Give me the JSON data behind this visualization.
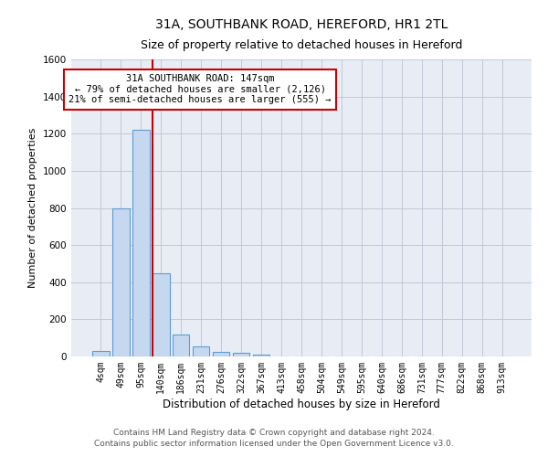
{
  "title_line1": "31A, SOUTHBANK ROAD, HEREFORD, HR1 2TL",
  "title_line2": "Size of property relative to detached houses in Hereford",
  "xlabel": "Distribution of detached houses by size in Hereford",
  "ylabel": "Number of detached properties",
  "footer_line1": "Contains HM Land Registry data © Crown copyright and database right 2024.",
  "footer_line2": "Contains public sector information licensed under the Open Government Licence v3.0.",
  "bin_labels": [
    "4sqm",
    "49sqm",
    "95sqm",
    "140sqm",
    "186sqm",
    "231sqm",
    "276sqm",
    "322sqm",
    "367sqm",
    "413sqm",
    "458sqm",
    "504sqm",
    "549sqm",
    "595sqm",
    "640sqm",
    "686sqm",
    "731sqm",
    "777sqm",
    "822sqm",
    "868sqm",
    "913sqm"
  ],
  "bar_values": [
    30,
    800,
    1220,
    450,
    120,
    55,
    25,
    18,
    10,
    0,
    0,
    0,
    0,
    0,
    0,
    0,
    0,
    0,
    0,
    0,
    0
  ],
  "bar_color": "#c5d8f0",
  "bar_edge_color": "#5b9bd5",
  "vline_color": "#cc0000",
  "annotation_text": "31A SOUTHBANK ROAD: 147sqm\n← 79% of detached houses are smaller (2,126)\n21% of semi-detached houses are larger (555) →",
  "annotation_box_color": "white",
  "annotation_box_edge": "#cc0000",
  "ylim": [
    0,
    1600
  ],
  "yticks": [
    0,
    200,
    400,
    600,
    800,
    1000,
    1200,
    1400,
    1600
  ],
  "grid_color": "#c0c8d8",
  "bg_color": "#e8edf5",
  "title_fontsize": 10,
  "subtitle_fontsize": 9,
  "tick_fontsize": 7,
  "ylabel_fontsize": 8,
  "xlabel_fontsize": 8.5,
  "footer_fontsize": 6.5,
  "annotation_fontsize": 7.5
}
